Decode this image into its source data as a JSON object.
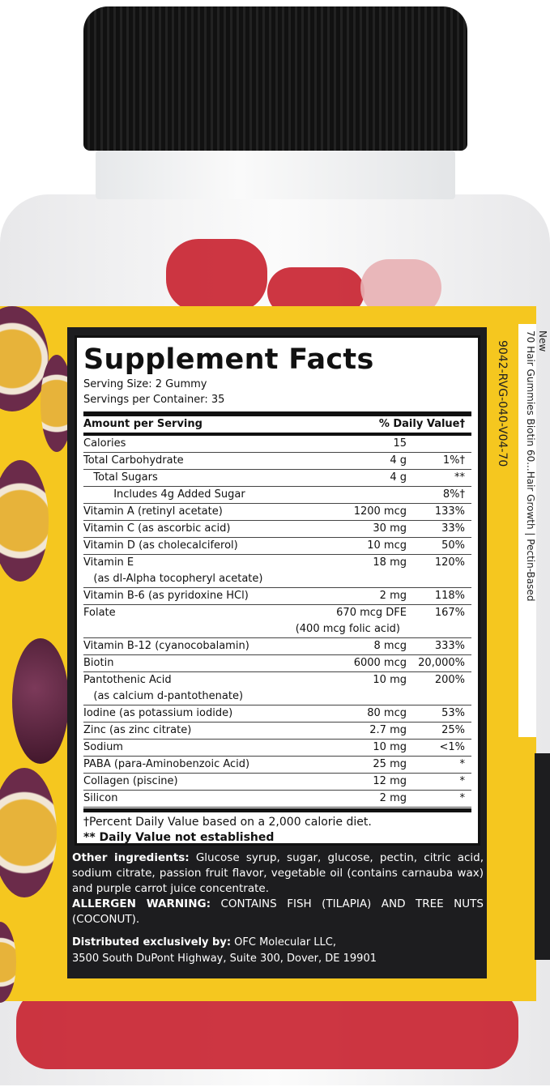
{
  "product": {
    "title": "Supplement Facts",
    "serving_size": "Serving Size: 2 Gummy",
    "servings_per_container": "Servings per Container: 35",
    "header": {
      "amount": "Amount per Serving",
      "dv": "% Daily Value†"
    },
    "rows": [
      {
        "name": "Calories",
        "amount": "15",
        "dv": ""
      },
      {
        "name": "Total Carbohydrate",
        "amount": "4 g",
        "dv": "1%†"
      },
      {
        "name": "   Total Sugars",
        "amount": "4 g",
        "dv": "**"
      },
      {
        "name": "         Includes 4g Added Sugar",
        "amount": "",
        "dv": "8%†"
      },
      {
        "name": "Vitamin A (retinyl acetate)",
        "amount": "1200 mcg",
        "dv": "133%"
      },
      {
        "name": "Vitamin C (as ascorbic acid)",
        "amount": "30 mg",
        "dv": "33%"
      },
      {
        "name": "Vitamin D (as cholecalciferol)",
        "amount": "10 mcg",
        "dv": "50%"
      },
      {
        "name": "Vitamin E",
        "amount": "18 mg",
        "dv": "120%",
        "sub": "   (as dl-Alpha tocopheryl acetate)"
      },
      {
        "name": "Vitamin B-6 (as pyridoxine HCl)",
        "amount": "2 mg",
        "dv": "118%"
      },
      {
        "name": "Folate",
        "amount": "670 mcg DFE",
        "dv": "167%",
        "sub_amount": "(400 mcg folic acid)"
      },
      {
        "name": "Vitamin B-12 (cyanocobalamin)",
        "amount": "8 mcg",
        "dv": "333%"
      },
      {
        "name": "Biotin",
        "amount": "6000 mcg",
        "dv": "20,000%"
      },
      {
        "name": "Pantothenic Acid",
        "amount": "10 mg",
        "dv": "200%",
        "sub": "   (as calcium d-pantothenate)"
      },
      {
        "name": "Iodine (as potassium iodide)",
        "amount": "80 mcg",
        "dv": "53%"
      },
      {
        "name": "Zinc (as zinc citrate)",
        "amount": "2.7 mg",
        "dv": "25%"
      },
      {
        "name": "Sodium",
        "amount": "10 mg",
        "dv": "<1%"
      },
      {
        "name": "PABA (para-Aminobenzoic Acid)",
        "amount": "25 mg",
        "dv": "*"
      },
      {
        "name": "Collagen (piscine)",
        "amount": "12 mg",
        "dv": "*"
      },
      {
        "name": "Silicon",
        "amount": "2 mg",
        "dv": "*"
      }
    ],
    "footnote1": "†Percent Daily Value based on a 2,000 calorie diet.",
    "footnote2": "** Daily Value not established",
    "other_label": "Other ingredients:",
    "other_text": " Glucose syrup, sugar, glucose, pectin, citric acid, sodium citrate, passion fruit flavor, vegetable oil (contains carnauba wax) and purple carrot juice concentrate.",
    "allergen_label": "ALLERGEN WARNING:",
    "allergen_text": " CONTAINS FISH (TILAPIA) AND TREE NUTS (COCONUT).",
    "dist_label": "Distributed exclusively by:",
    "dist_name": " OFC Molecular LLC,",
    "dist_address": "3500 South DuPont Highway, Suite 300, Dover, DE 19901",
    "lot_code": "9042-RVG-040-V04-70",
    "side_text_1": "70 Hair Gummies Biotin 60...Hair Growth | Pectin-Based",
    "side_text_2": "New"
  },
  "colors": {
    "label": "#f5c71f",
    "panel": "#1d1d1f",
    "cap": "#111111",
    "gummy": "#c8202e"
  }
}
